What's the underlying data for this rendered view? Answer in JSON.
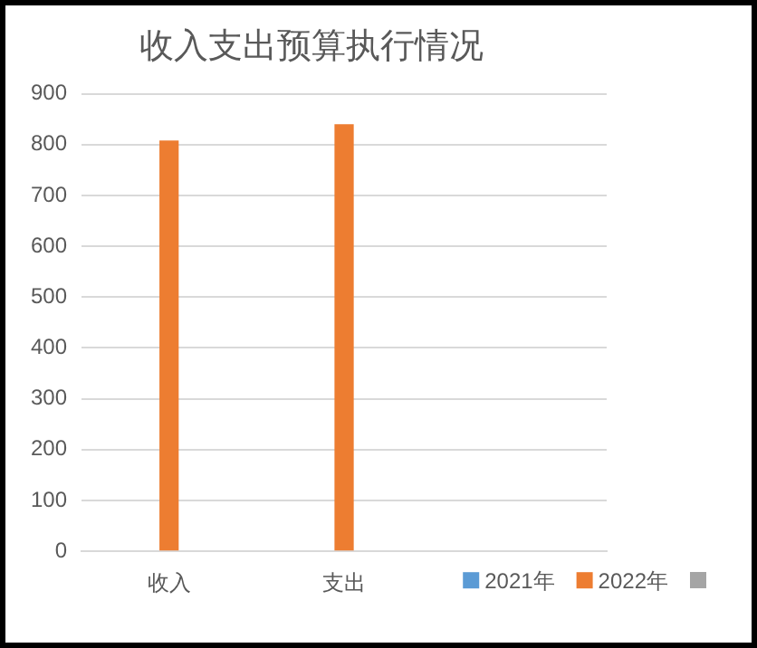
{
  "chart_data": {
    "type": "bar",
    "title": "收入支出预算执行情况",
    "categories": [
      "收入",
      "支出",
      null
    ],
    "series": [
      {
        "name": "2021年",
        "color": "#5b9bd5",
        "values": [
          null,
          null,
          null
        ]
      },
      {
        "name": "2022年",
        "color": "#ed7d31",
        "values": [
          808,
          840,
          null
        ]
      },
      {
        "color": "#a5a5a5",
        "values": [
          null,
          null,
          null
        ]
      }
    ],
    "ylim": [
      0,
      900
    ],
    "yticks": [
      0,
      100,
      200,
      300,
      400,
      500,
      600,
      700,
      800,
      900
    ],
    "grid": "y",
    "legend": "bottom right"
  }
}
